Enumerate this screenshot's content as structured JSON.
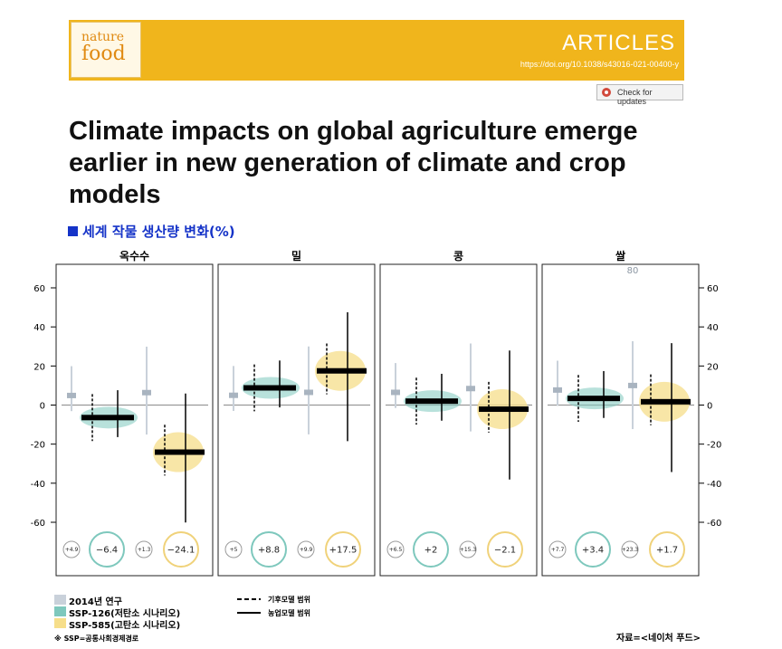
{
  "header": {
    "logo_line1": "nature",
    "logo_line2": "food",
    "section": "ARTICLES",
    "doi": "https://doi.org/10.1038/s43016-021-00400-y",
    "check_updates": "Check for updates"
  },
  "article": {
    "title": "Climate impacts on global agriculture emerge earlier in new generation of climate and crop models",
    "subtitle": "세계 작물 생산량 변화(%)"
  },
  "colors": {
    "banner": "#f0b51c",
    "study2014": "#c9d1da",
    "ssp126": "#7ec8bd",
    "ssp585": "#f6de8a",
    "subtitle": "#1533c8"
  },
  "chart_data": {
    "type": "box",
    "ylim": [
      -60,
      60
    ],
    "yticks": [
      -60,
      -40,
      -20,
      0,
      20,
      40,
      60
    ],
    "panels": [
      {
        "name": "옥수수",
        "study2014": 4.9,
        "ssp126": -6.4,
        "ssp585": -24.1,
        "labels": [
          "+4.9",
          "−6.4",
          "+1.3",
          "−24.1"
        ]
      },
      {
        "name": "밀",
        "study2014": 5,
        "ssp126": 8.8,
        "ssp585": 17.5,
        "labels": [
          "+5",
          "+8.8",
          "+9.9",
          "+17.5"
        ]
      },
      {
        "name": "콩",
        "study2014": 6.5,
        "ssp126": 2,
        "ssp585": -2.1,
        "labels": [
          "+6.5",
          "+2",
          "+15.3",
          "−2.1"
        ]
      },
      {
        "name": "쌀",
        "study2014": 7.7,
        "ssp126": 3.4,
        "ssp585": 1.7,
        "labels": [
          "+7.7",
          "+3.4",
          "+23.3",
          "+1.7"
        ],
        "outlier_label": "80"
      }
    ]
  },
  "legend": {
    "items": [
      "2014년 연구",
      "SSP-126(저탄소 시나리오)",
      "SSP-585(고탄소 시나리오)"
    ],
    "note": "※ SSP=공통사회경제경로",
    "line_dashed": "기후모델 범위",
    "line_solid": "농업모델 범위"
  },
  "source": "자료=<네이처 푸드>"
}
